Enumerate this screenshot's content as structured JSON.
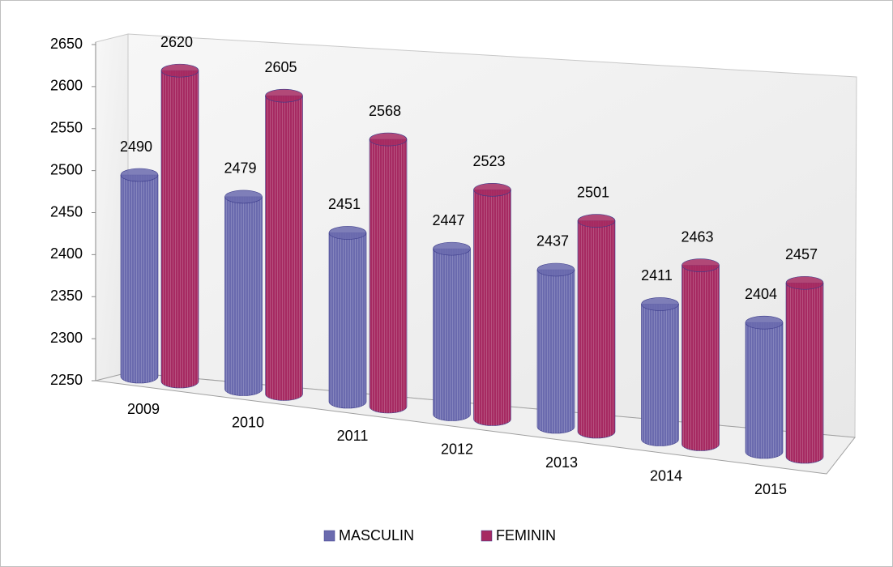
{
  "chart_data": {
    "type": "bar3d",
    "categories": [
      "2009",
      "2010",
      "2011",
      "2012",
      "2013",
      "2014",
      "2015"
    ],
    "series": [
      {
        "name": "MASCULIN",
        "color": "#6a6aae",
        "values": [
          2490,
          2479,
          2451,
          2447,
          2437,
          2411,
          2404
        ]
      },
      {
        "name": "FEMININ",
        "color": "#a62a62",
        "values": [
          2620,
          2605,
          2568,
          2523,
          2501,
          2463,
          2457
        ]
      }
    ],
    "ylim": [
      2250,
      2650
    ],
    "yticks": [
      2250,
      2300,
      2350,
      2400,
      2450,
      2500,
      2550,
      2600,
      2650
    ],
    "legend": "bottom"
  }
}
